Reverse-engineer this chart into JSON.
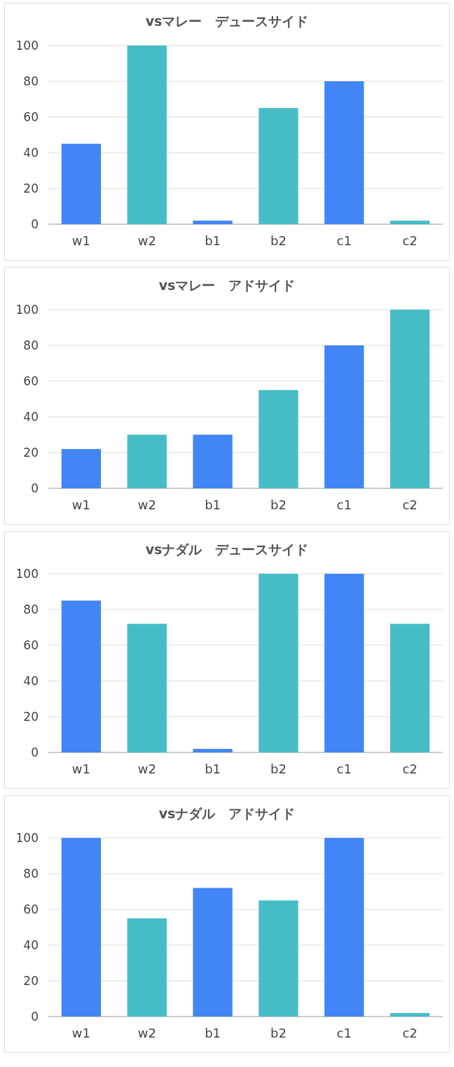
{
  "chart_data": [
    {
      "type": "bar",
      "title": "vsマレー　デュースサイド",
      "categories": [
        "w1",
        "w2",
        "b1",
        "b2",
        "c1",
        "c2"
      ],
      "values": [
        45,
        100,
        2,
        65,
        80,
        2
      ],
      "colors": [
        "#4285f4",
        "#46bdc6",
        "#4285f4",
        "#46bdc6",
        "#4285f4",
        "#46bdc6"
      ],
      "ylim": [
        0,
        100
      ],
      "yticks": [
        0,
        20,
        40,
        60,
        80,
        100
      ],
      "grid": "y"
    },
    {
      "type": "bar",
      "title": "vsマレー　アドサイド",
      "categories": [
        "w1",
        "w2",
        "b1",
        "b2",
        "c1",
        "c2"
      ],
      "values": [
        22,
        30,
        30,
        55,
        80,
        100
      ],
      "colors": [
        "#4285f4",
        "#46bdc6",
        "#4285f4",
        "#46bdc6",
        "#4285f4",
        "#46bdc6"
      ],
      "ylim": [
        0,
        100
      ],
      "yticks": [
        0,
        20,
        40,
        60,
        80,
        100
      ],
      "grid": "y"
    },
    {
      "type": "bar",
      "title": "vsナダル　デュースサイド",
      "categories": [
        "w1",
        "w2",
        "b1",
        "b2",
        "c1",
        "c2"
      ],
      "values": [
        85,
        72,
        2,
        100,
        100,
        72
      ],
      "colors": [
        "#4285f4",
        "#46bdc6",
        "#4285f4",
        "#46bdc6",
        "#4285f4",
        "#46bdc6"
      ],
      "ylim": [
        0,
        100
      ],
      "yticks": [
        0,
        20,
        40,
        60,
        80,
        100
      ],
      "grid": "y"
    },
    {
      "type": "bar",
      "title": "vsナダル　アドサイド",
      "categories": [
        "w1",
        "w2",
        "b1",
        "b2",
        "c1",
        "c2"
      ],
      "values": [
        100,
        55,
        72,
        65,
        100,
        2
      ],
      "colors": [
        "#4285f4",
        "#46bdc6",
        "#4285f4",
        "#46bdc6",
        "#4285f4",
        "#46bdc6"
      ],
      "ylim": [
        0,
        100
      ],
      "yticks": [
        0,
        20,
        40,
        60,
        80,
        100
      ],
      "grid": "y"
    }
  ]
}
